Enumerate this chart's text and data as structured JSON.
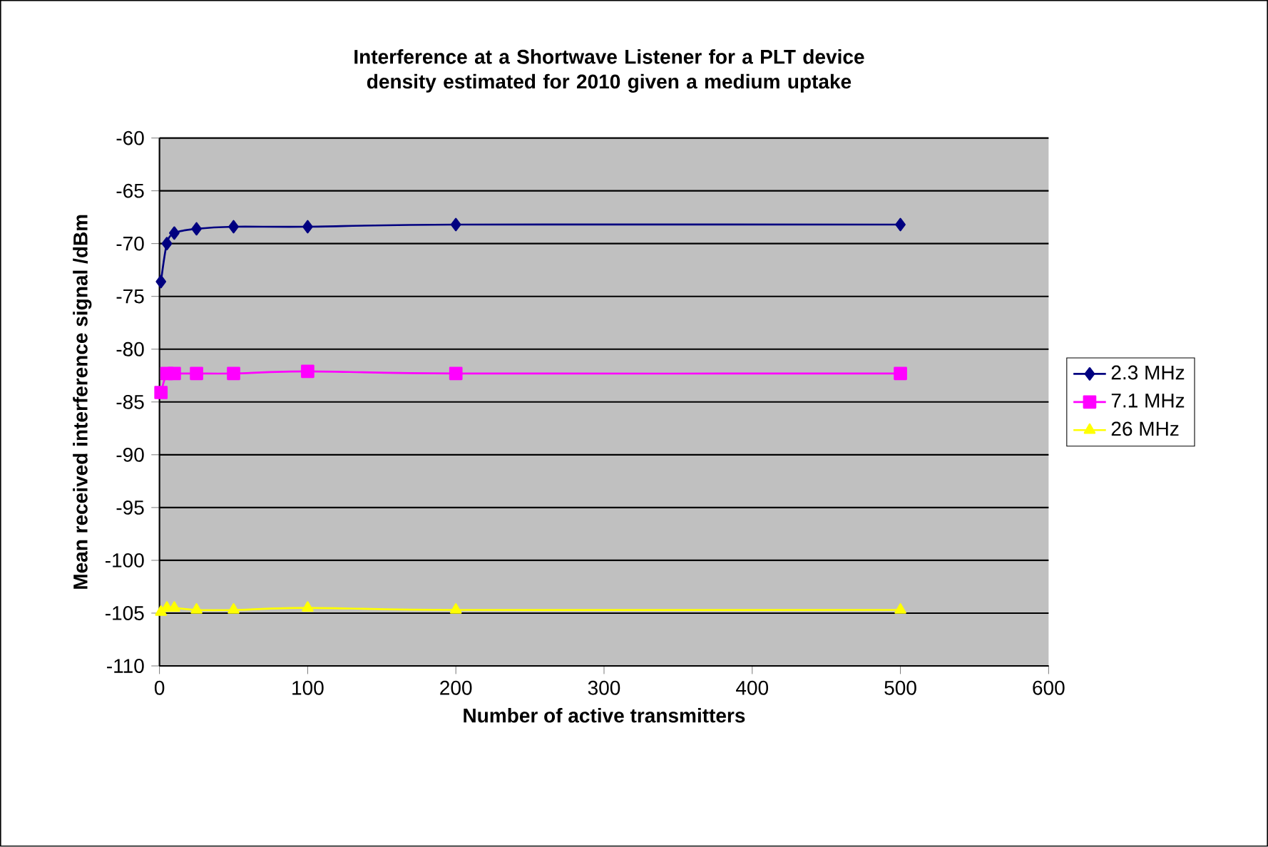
{
  "chart_data": {
    "type": "line",
    "title": "Interference at a Shortwave Listener for a PLT device density estimated for 2010 given a medium uptake",
    "xlabel": "Number of active transmitters",
    "ylabel": "Mean received interference signal /dBm",
    "x": [
      1,
      5,
      10,
      25,
      50,
      100,
      200,
      500
    ],
    "series": [
      {
        "name": "2.3 MHz",
        "color": "#000080",
        "marker": "diamond",
        "values": [
          -73.6,
          -70,
          -69,
          -68.6,
          -68.4,
          -68.4,
          -68.2,
          -68.2
        ]
      },
      {
        "name": "7.1 MHz",
        "color": "#ff00ff",
        "marker": "square",
        "values": [
          -84.1,
          -82.3,
          -82.3,
          -82.3,
          -82.3,
          -82.1,
          -82.3,
          -82.3
        ]
      },
      {
        "name": "26 MHz",
        "color": "#ffff00",
        "marker": "triangle",
        "values": [
          -104.9,
          -104.5,
          -104.5,
          -104.7,
          -104.7,
          -104.5,
          -104.7,
          -104.7
        ]
      }
    ],
    "xlim": [
      0,
      600
    ],
    "xticks": [
      0,
      100,
      200,
      300,
      400,
      500,
      600
    ],
    "ylim": [
      -110,
      -60
    ],
    "yticks": [
      -110,
      -105,
      -100,
      -95,
      -90,
      -85,
      -80,
      -75,
      -70,
      -65,
      -60
    ],
    "grid": "y",
    "legend": "right",
    "line_style": "solid"
  }
}
